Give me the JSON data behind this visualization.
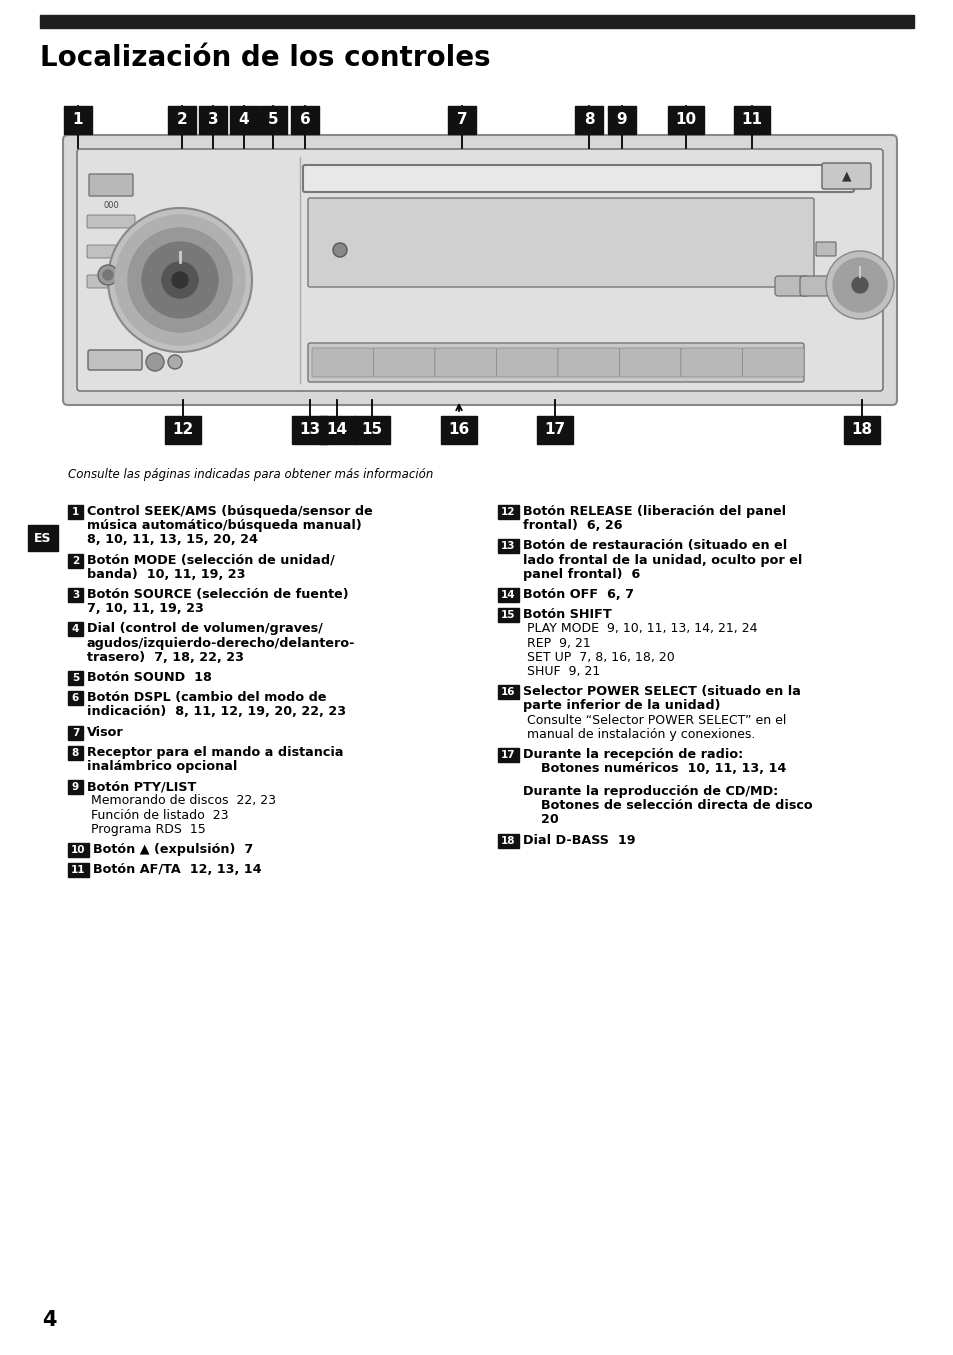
{
  "title": "Localización de los controles",
  "bg_color": "#ffffff",
  "header_bar_color": "#1e1e1e",
  "subtitle": "Consulte las páginas indicadas para obtener más información",
  "page_number": "4",
  "top_labels": [
    [
      "1",
      78
    ],
    [
      "2",
      182
    ],
    [
      "3",
      213
    ],
    [
      "4",
      244
    ],
    [
      "5",
      273
    ],
    [
      "6",
      305
    ],
    [
      "7",
      462
    ],
    [
      "8",
      589
    ],
    [
      "9",
      622
    ],
    [
      "10",
      686
    ],
    [
      "11",
      752
    ]
  ],
  "bottom_labels": [
    [
      "12",
      183
    ],
    [
      "13",
      310
    ],
    [
      "14",
      337
    ],
    [
      "15",
      372
    ],
    [
      "16",
      459
    ],
    [
      "17",
      555
    ],
    [
      "18",
      862
    ]
  ],
  "left_col_items": [
    {
      "num": "1",
      "text_lines": [
        [
          "Control SEEK/AMS (búsqueda/sensor de",
          true
        ],
        [
          "música automático/búsqueda manual)",
          true
        ],
        [
          "8, 10, 11, 13, 15, 20, 24",
          true
        ]
      ]
    },
    {
      "num": "2",
      "text_lines": [
        [
          "Botón MODE (selección de unidad/",
          true
        ],
        [
          "banda)  10, 11, 19, 23",
          true
        ]
      ]
    },
    {
      "num": "3",
      "text_lines": [
        [
          "Botón SOURCE (selección de fuente)",
          true
        ],
        [
          "7, 10, 11, 19, 23",
          true
        ]
      ]
    },
    {
      "num": "4",
      "text_lines": [
        [
          "Dial (control de volumen/graves/",
          true
        ],
        [
          "agudos/izquierdo-derecho/delantero-",
          true
        ],
        [
          "trasero)  7, 18, 22, 23",
          true
        ]
      ]
    },
    {
      "num": "5",
      "text_lines": [
        [
          "Botón SOUND  18",
          true
        ]
      ]
    },
    {
      "num": "6",
      "text_lines": [
        [
          "Botón DSPL (cambio del modo de",
          true
        ],
        [
          "indicación)  8, 11, 12, 19, 20, 22, 23",
          true
        ]
      ]
    },
    {
      "num": "7",
      "text_lines": [
        [
          "Visor",
          true
        ]
      ]
    },
    {
      "num": "8",
      "text_lines": [
        [
          "Receptor para el mando a distancia",
          true
        ],
        [
          "inalámbrico opcional",
          true
        ]
      ]
    },
    {
      "num": "9",
      "text_lines": [
        [
          "Botón PTY/LIST",
          true
        ],
        [
          "Memorando de discos  22, 23",
          false
        ],
        [
          "Función de listado  23",
          false
        ],
        [
          "Programa RDS  15",
          false
        ]
      ]
    },
    {
      "num": "10",
      "text_lines": [
        [
          "Botón ▲ (expulsión)  7",
          true
        ]
      ]
    },
    {
      "num": "11",
      "text_lines": [
        [
          "Botón AF/TA  12, 13, 14",
          true
        ]
      ]
    }
  ],
  "right_col_items": [
    {
      "num": "12",
      "text_lines": [
        [
          "Botón RELEASE (liberación del panel",
          true
        ],
        [
          "frontal)  6, 26",
          true
        ]
      ]
    },
    {
      "num": "13",
      "text_lines": [
        [
          "Botón de restauración (situado en el",
          true
        ],
        [
          "lado frontal de la unidad, oculto por el",
          true
        ],
        [
          "panel frontal)  6",
          true
        ]
      ]
    },
    {
      "num": "14",
      "text_lines": [
        [
          "Botón OFF  6, 7",
          true
        ]
      ]
    },
    {
      "num": "15",
      "text_lines": [
        [
          "Botón SHIFT",
          true
        ],
        [
          "PLAY MODE  9, 10, 11, 13, 14, 21, 24",
          false
        ],
        [
          "REP  9, 21",
          false
        ],
        [
          "SET UP  7, 8, 16, 18, 20",
          false
        ],
        [
          "SHUF  9, 21",
          false
        ]
      ]
    },
    {
      "num": "16",
      "text_lines": [
        [
          "Selector POWER SELECT (situado en la",
          true
        ],
        [
          "parte inferior de la unidad)",
          true
        ],
        [
          "Consulte “Selector POWER SELECT” en el",
          false
        ],
        [
          "manual de instalación y conexiones.",
          false
        ]
      ]
    },
    {
      "num": "17",
      "text_lines": [
        [
          "Durante la recepción de radio:",
          true
        ],
        [
          "    Botones numéricos  10, 11, 13, 14",
          true
        ],
        [
          "",
          false
        ],
        [
          "Durante la reproducción de CD/MD:",
          true
        ],
        [
          "    Botones de selección directa de disco",
          true
        ],
        [
          "    20",
          true
        ]
      ]
    },
    {
      "num": "18",
      "text_lines": [
        [
          "Dial D-BASS  19",
          true
        ]
      ]
    }
  ]
}
